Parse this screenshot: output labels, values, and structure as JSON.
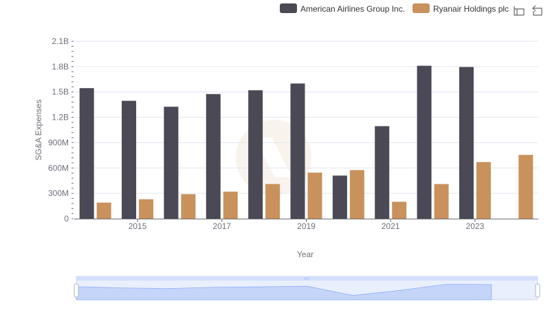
{
  "toolbar": {
    "zoom_icon": "zoom-select-icon",
    "restore_icon": "zoom-reset-icon"
  },
  "colors": {
    "american": "#4a4955",
    "ryanair": "#c9915c",
    "grid": "#e0e6f1",
    "slider_fill": "#d3dffb",
    "slider_line": "#8fb0f7"
  },
  "chart_data": {
    "type": "bar",
    "title": "",
    "xlabel": "Year",
    "ylabel": "SG&A Expenses",
    "x_tick_labels": [
      "2015",
      "2017",
      "2019",
      "2021",
      "2023"
    ],
    "y_tick_labels": [
      "0",
      "300M",
      "600M",
      "900M",
      "1.2B",
      "1.5B",
      "1.8B",
      "2.1B"
    ],
    "categories": [
      "2014",
      "2015",
      "2016",
      "2017",
      "2018",
      "2019",
      "2020",
      "2021",
      "2022",
      "2023",
      "2024"
    ],
    "ylim": [
      0,
      2100000000
    ],
    "grid": true,
    "legend_position": "top-right",
    "series": [
      {
        "name": "American Airlines Group Inc.",
        "color": "#4a4955",
        "values": [
          1545000000,
          1395000000,
          1325000000,
          1475000000,
          1520000000,
          1600000000,
          510000000,
          1095000000,
          1810000000,
          1795000000,
          null
        ]
      },
      {
        "name": "Ryanair Holdings plc",
        "color": "#c9915c",
        "values": [
          190000000,
          230000000,
          290000000,
          320000000,
          410000000,
          545000000,
          575000000,
          200000000,
          410000000,
          670000000,
          755000000
        ]
      }
    ]
  }
}
